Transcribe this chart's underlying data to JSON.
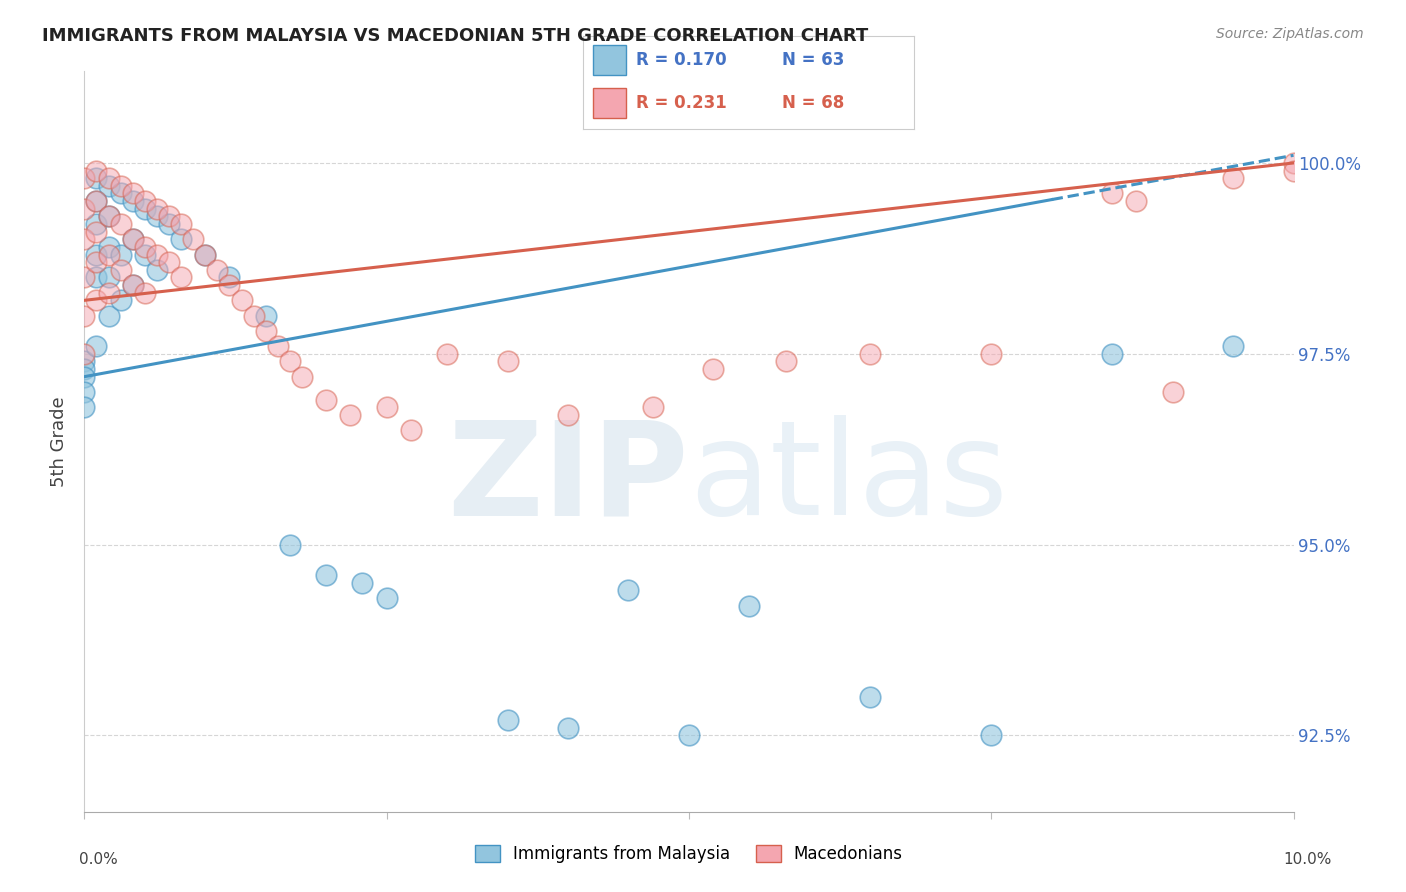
{
  "title": "IMMIGRANTS FROM MALAYSIA VS MACEDONIAN 5TH GRADE CORRELATION CHART",
  "source": "Source: ZipAtlas.com",
  "ylabel": "5th Grade",
  "yticks": [
    92.5,
    95.0,
    97.5,
    100.0
  ],
  "ytick_labels": [
    "92.5%",
    "95.0%",
    "97.5%",
    "100.0%"
  ],
  "xmin": 0.0,
  "xmax": 10.0,
  "ymin": 91.5,
  "ymax": 101.2,
  "legend1_label": "Immigrants from Malaysia",
  "legend2_label": "Macedonians",
  "r_blue": 0.17,
  "n_blue": 63,
  "r_pink": 0.231,
  "n_pink": 68,
  "blue_color": "#92c5de",
  "pink_color": "#f4a6b0",
  "blue_line_color": "#4393c3",
  "pink_line_color": "#d6604d",
  "blue_scatter_x": [
    0.0,
    0.0,
    0.0,
    0.0,
    0.0,
    0.1,
    0.1,
    0.1,
    0.1,
    0.1,
    0.1,
    0.2,
    0.2,
    0.2,
    0.2,
    0.2,
    0.3,
    0.3,
    0.3,
    0.4,
    0.4,
    0.4,
    0.5,
    0.5,
    0.6,
    0.6,
    0.7,
    0.8,
    1.0,
    1.2,
    1.5,
    1.7,
    2.0,
    2.3,
    2.5,
    3.5,
    4.0,
    4.5,
    5.0,
    5.5,
    6.5,
    7.5,
    8.5,
    9.5
  ],
  "blue_scatter_y": [
    97.4,
    97.3,
    97.2,
    97.0,
    96.8,
    99.8,
    99.5,
    99.2,
    98.8,
    98.5,
    97.6,
    99.7,
    99.3,
    98.9,
    98.5,
    98.0,
    99.6,
    98.8,
    98.2,
    99.5,
    99.0,
    98.4,
    99.4,
    98.8,
    99.3,
    98.6,
    99.2,
    99.0,
    98.8,
    98.5,
    98.0,
    95.0,
    94.6,
    94.5,
    94.3,
    92.7,
    92.6,
    94.4,
    92.5,
    94.2,
    93.0,
    92.5,
    97.5,
    97.6
  ],
  "pink_scatter_x": [
    0.0,
    0.0,
    0.0,
    0.0,
    0.0,
    0.0,
    0.1,
    0.1,
    0.1,
    0.1,
    0.1,
    0.2,
    0.2,
    0.2,
    0.2,
    0.3,
    0.3,
    0.3,
    0.4,
    0.4,
    0.4,
    0.5,
    0.5,
    0.5,
    0.6,
    0.6,
    0.7,
    0.7,
    0.8,
    0.8,
    0.9,
    1.0,
    1.1,
    1.2,
    1.3,
    1.4,
    1.5,
    1.6,
    1.7,
    1.8,
    2.0,
    2.2,
    2.5,
    2.7,
    3.0,
    3.5,
    4.0,
    4.7,
    5.2,
    5.8,
    6.5,
    7.5,
    8.5,
    8.7,
    9.0,
    9.5,
    10.0,
    10.0
  ],
  "pink_scatter_y": [
    99.8,
    99.4,
    99.0,
    98.5,
    98.0,
    97.5,
    99.9,
    99.5,
    99.1,
    98.7,
    98.2,
    99.8,
    99.3,
    98.8,
    98.3,
    99.7,
    99.2,
    98.6,
    99.6,
    99.0,
    98.4,
    99.5,
    98.9,
    98.3,
    99.4,
    98.8,
    99.3,
    98.7,
    99.2,
    98.5,
    99.0,
    98.8,
    98.6,
    98.4,
    98.2,
    98.0,
    97.8,
    97.6,
    97.4,
    97.2,
    96.9,
    96.7,
    96.8,
    96.5,
    97.5,
    97.4,
    96.7,
    96.8,
    97.3,
    97.4,
    97.5,
    97.5,
    99.6,
    99.5,
    97.0,
    99.8,
    100.0,
    99.9
  ],
  "blue_trendline_x": [
    0.0,
    10.0
  ],
  "blue_trendline_y": [
    97.2,
    100.1
  ],
  "pink_trendline_x": [
    0.0,
    10.0
  ],
  "pink_trendline_y": [
    98.2,
    100.0
  ],
  "blue_dashed_start_x": 8.0
}
